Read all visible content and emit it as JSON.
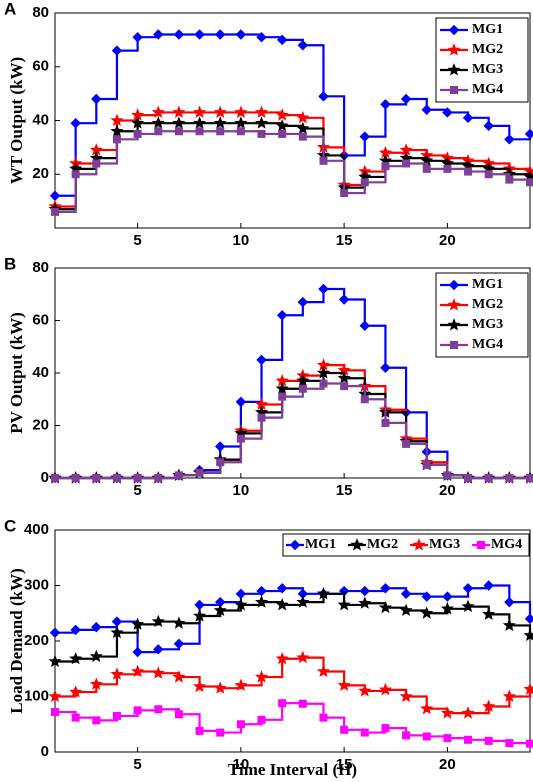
{
  "chart_data": [
    {
      "type": "line",
      "step": true,
      "label": "A",
      "ylabel": "WT Output (kW)",
      "x": [
        1,
        2,
        3,
        4,
        5,
        6,
        7,
        8,
        9,
        10,
        11,
        12,
        13,
        14,
        15,
        16,
        17,
        18,
        19,
        20,
        21,
        22,
        23,
        24
      ],
      "xlim": [
        1,
        24
      ],
      "xticks": [
        5,
        10,
        15,
        20
      ],
      "ylim": [
        0,
        80
      ],
      "yticks": [
        20,
        40,
        60,
        80
      ],
      "legend": "upper right",
      "legend_layout": "vertical",
      "series": [
        {
          "name": "MG1",
          "color": "#0000ff",
          "marker": "diamond",
          "values": [
            12,
            39,
            48,
            66,
            71,
            72,
            72,
            72,
            72,
            72,
            71,
            70,
            68,
            49,
            27,
            34,
            46,
            48,
            44,
            43,
            41,
            38,
            33,
            35
          ]
        },
        {
          "name": "MG2",
          "color": "#ff0000",
          "marker": "star",
          "values": [
            8,
            24,
            29,
            40,
            42,
            43,
            43,
            43,
            43,
            43,
            43,
            42,
            41,
            30,
            16,
            21,
            28,
            29,
            27,
            26,
            25,
            24,
            22,
            21
          ]
        },
        {
          "name": "MG3",
          "color": "#000000",
          "marker": "star",
          "values": [
            7,
            22,
            26,
            36,
            39,
            39,
            39,
            39,
            39,
            39,
            39,
            38,
            37,
            27,
            15,
            19,
            25,
            26,
            25,
            24,
            23,
            22,
            20,
            19
          ]
        },
        {
          "name": "MG4",
          "color": "#7f3f98",
          "marker": "square",
          "values": [
            6,
            20,
            24,
            33,
            35,
            36,
            36,
            36,
            36,
            36,
            35,
            35,
            34,
            25,
            13,
            17,
            23,
            24,
            22,
            22,
            21,
            20,
            18,
            17
          ]
        }
      ]
    },
    {
      "type": "line",
      "step": true,
      "label": "B",
      "ylabel": "PV Output (kW)",
      "x": [
        1,
        2,
        3,
        4,
        5,
        6,
        7,
        8,
        9,
        10,
        11,
        12,
        13,
        14,
        15,
        16,
        17,
        18,
        19,
        20,
        21,
        22,
        23,
        24
      ],
      "xlim": [
        1,
        24
      ],
      "xticks": [
        5,
        10,
        15,
        20
      ],
      "ylim": [
        0,
        80
      ],
      "yticks": [
        0,
        20,
        40,
        60,
        80
      ],
      "legend": "upper right",
      "legend_layout": "vertical",
      "series": [
        {
          "name": "MG1",
          "color": "#0000ff",
          "marker": "diamond",
          "values": [
            0,
            0,
            0,
            0,
            0,
            0,
            1,
            3,
            12,
            29,
            45,
            62,
            67,
            72,
            68,
            58,
            42,
            25,
            10,
            1,
            0,
            0,
            0,
            0
          ]
        },
        {
          "name": "MG2",
          "color": "#ff0000",
          "marker": "star",
          "values": [
            0,
            0,
            0,
            0,
            0,
            0,
            1,
            2,
            7,
            18,
            28,
            37,
            39,
            43,
            41,
            35,
            26,
            15,
            6,
            1,
            0,
            0,
            0,
            0
          ]
        },
        {
          "name": "MG3",
          "color": "#000000",
          "marker": "star",
          "values": [
            0,
            0,
            0,
            0,
            0,
            0,
            1,
            2,
            7,
            17,
            25,
            34,
            37,
            40,
            38,
            32,
            25,
            14,
            5,
            1,
            0,
            0,
            0,
            0
          ]
        },
        {
          "name": "MG4",
          "color": "#7f3f98",
          "marker": "square",
          "values": [
            0,
            0,
            0,
            0,
            0,
            0,
            1,
            2,
            6,
            15,
            23,
            31,
            34,
            36,
            35,
            30,
            21,
            13,
            5,
            1,
            0,
            0,
            0,
            0
          ]
        }
      ]
    },
    {
      "type": "line",
      "step": true,
      "label": "C",
      "ylabel": "Load Demand (kW)",
      "xlabel": "Time Interval (H)",
      "x": [
        1,
        2,
        3,
        4,
        5,
        6,
        7,
        8,
        9,
        10,
        11,
        12,
        13,
        14,
        15,
        16,
        17,
        18,
        19,
        20,
        21,
        22,
        23,
        24
      ],
      "xlim": [
        1,
        24
      ],
      "xticks": [
        5,
        10,
        15,
        20
      ],
      "ylim": [
        0,
        400
      ],
      "yticks": [
        0,
        100,
        200,
        300,
        400
      ],
      "legend": "upper right",
      "legend_layout": "horizontal",
      "series": [
        {
          "name": "MG1",
          "color": "#0000ff",
          "marker": "diamond",
          "values": [
            215,
            220,
            225,
            235,
            180,
            185,
            195,
            265,
            270,
            285,
            290,
            295,
            285,
            285,
            290,
            290,
            295,
            285,
            280,
            280,
            295,
            300,
            270,
            240
          ]
        },
        {
          "name": "MG2",
          "color": "#000000",
          "marker": "star",
          "values": [
            163,
            168,
            172,
            215,
            230,
            235,
            232,
            245,
            255,
            265,
            270,
            265,
            270,
            285,
            265,
            268,
            260,
            255,
            250,
            258,
            262,
            248,
            228,
            210
          ]
        },
        {
          "name": "MG3",
          "color": "#ff0000",
          "marker": "star",
          "values": [
            100,
            108,
            122,
            140,
            145,
            142,
            135,
            118,
            115,
            120,
            135,
            168,
            170,
            145,
            120,
            110,
            112,
            100,
            78,
            70,
            70,
            82,
            100,
            113
          ]
        },
        {
          "name": "MG4",
          "color": "#ff00ff",
          "marker": "square",
          "values": [
            72,
            62,
            57,
            65,
            75,
            77,
            68,
            38,
            35,
            50,
            58,
            88,
            87,
            62,
            40,
            35,
            43,
            30,
            28,
            25,
            22,
            20,
            16,
            15
          ]
        }
      ]
    }
  ]
}
